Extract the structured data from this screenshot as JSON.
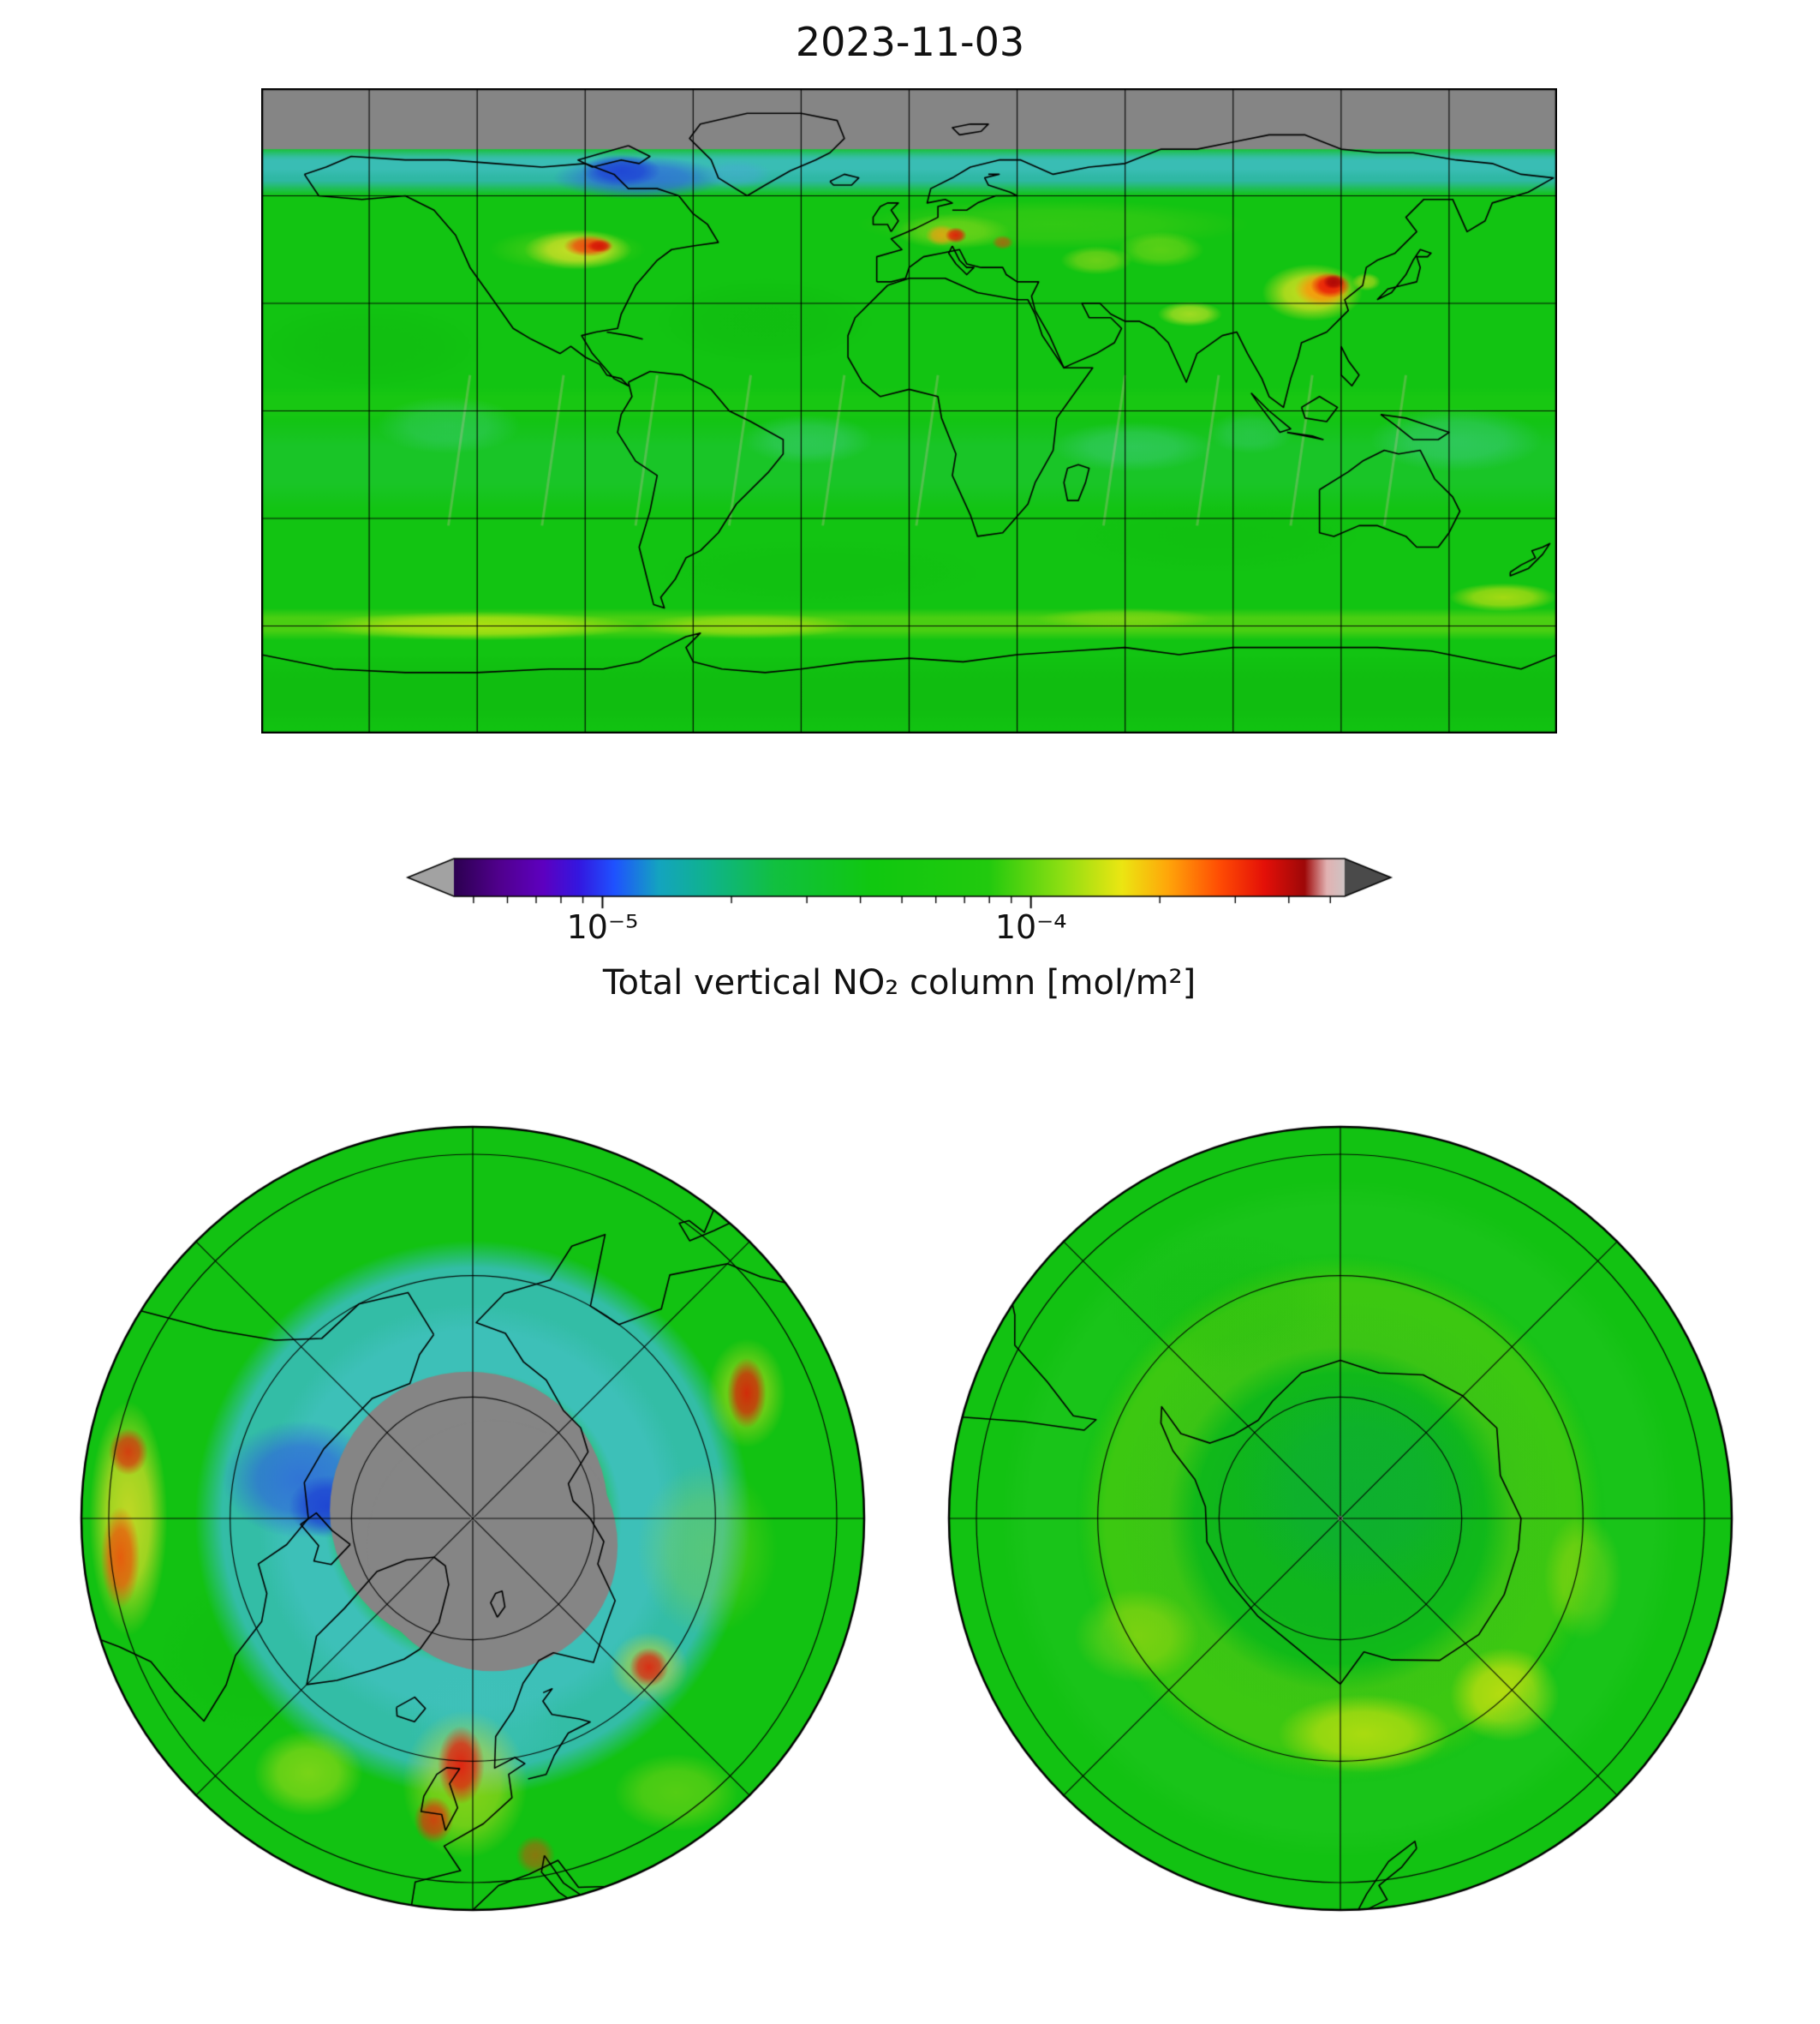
{
  "title": "2023-11-03",
  "figure": {
    "background": "#ffffff",
    "panels": [
      "global-map",
      "colorbar",
      "north-polar-map",
      "south-polar-map"
    ]
  },
  "colorbar": {
    "label": "Total vertical NO₂ column [mol/m²]",
    "scale": "log",
    "vmin": 4.5e-06,
    "vmax": 0.00054,
    "major_ticks": [
      {
        "value": 1e-05,
        "label": "10⁻⁵"
      },
      {
        "value": 0.0001,
        "label": "10⁻⁴"
      }
    ],
    "minor_ticks": [
      5e-06,
      6e-06,
      7e-06,
      8e-06,
      9e-06,
      2e-05,
      3e-05,
      4e-05,
      5e-05,
      6e-05,
      7e-05,
      8e-05,
      9e-05,
      0.0002,
      0.0003,
      0.0004,
      0.0005
    ],
    "under_arrow_color": "#a2a2a2",
    "over_arrow_color": "#4a4a4a",
    "gradient_stops": [
      [
        0,
        "#2c0050"
      ],
      [
        0.05,
        "#50008c"
      ],
      [
        0.1,
        "#5e00c0"
      ],
      [
        0.14,
        "#3417e0"
      ],
      [
        0.18,
        "#1f52ff"
      ],
      [
        0.23,
        "#14a4c0"
      ],
      [
        0.29,
        "#0fb488"
      ],
      [
        0.36,
        "#11c040"
      ],
      [
        0.47,
        "#10c810"
      ],
      [
        0.6,
        "#22ca0e"
      ],
      [
        0.68,
        "#8ade12"
      ],
      [
        0.75,
        "#ece612"
      ],
      [
        0.8,
        "#ffa80a"
      ],
      [
        0.86,
        "#ff4c04"
      ],
      [
        0.91,
        "#e41008"
      ],
      [
        0.955,
        "#9e0808"
      ],
      [
        0.98,
        "#e2b2b2"
      ],
      [
        1,
        "#cfc4c4"
      ]
    ]
  },
  "chart_data": [
    {
      "type": "heatmap",
      "name": "global_no2_map",
      "title": "2023-11-03",
      "projection": "plate-carree",
      "lon_range": [
        -180,
        180
      ],
      "lat_range": [
        -90,
        90
      ],
      "gridline_spacing_deg": 30,
      "colormap_range_mol_m2": [
        4.5e-06,
        0.00054
      ],
      "background_level_mol_m2": 5e-05,
      "no_data": {
        "region": "Arctic polar night band, lat > ~73N",
        "color": "#858585"
      },
      "overlays": [
        "coastlines",
        "gridlines"
      ],
      "hotspots": [
        {
          "region": "Central/Eastern United States",
          "lon": -89,
          "lat": 46,
          "peak_mol_m2": 0.0003
        },
        {
          "region": "Central Europe",
          "lon": 13,
          "lat": 49,
          "peak_mol_m2": 0.0003
        },
        {
          "region": "Eastern China",
          "lon": 117,
          "lat": 35,
          "peak_mol_m2": 0.0005
        },
        {
          "region": "Northern India",
          "lon": 78,
          "lat": 27,
          "peak_mol_m2": 0.00015
        },
        {
          "region": "Southern Ocean circumpolar band",
          "lon": 0,
          "lat": -60,
          "peak_mol_m2": 0.00012
        }
      ],
      "low_regions": [
        {
          "region": "Canadian Arctic / Greenland (polar twilight)",
          "lon": -78,
          "lat": 66,
          "min_mol_m2": 8e-06
        }
      ],
      "features": [
        {
          "op": "fill",
          "color": "#12c412"
        },
        {
          "op": "blob",
          "lon": -40,
          "lat": 25,
          "rlon": 30,
          "rlat": 12,
          "color": "#0a9e0a",
          "alpha": 0.15
        },
        {
          "op": "blob",
          "lon": -150,
          "lat": 18,
          "rlon": 32,
          "rlat": 12,
          "color": "#0a9e0a",
          "alpha": 0.13
        },
        {
          "op": "blob",
          "lon": 85,
          "lat": -35,
          "rlon": 40,
          "rlat": 10,
          "color": "#0fae0f",
          "alpha": 0.16
        },
        {
          "op": "blob",
          "lon": -25,
          "lat": -45,
          "rlon": 45,
          "rlat": 9,
          "color": "#0fae0f",
          "alpha": 0.14
        },
        {
          "op": "band",
          "lat0": -3,
          "lat1": 7,
          "soft": true,
          "color": "#2fd312",
          "alpha": 0.22
        },
        {
          "op": "band",
          "lat0": -28,
          "lat1": -2,
          "soft": true,
          "color": "#4ecfc0",
          "alpha": 0.12
        },
        {
          "op": "blob",
          "lon": -28,
          "lat": -8,
          "rlon": 18,
          "rlat": 7,
          "color": "#62d2cc",
          "alpha": 0.28
        },
        {
          "op": "blob",
          "lon": 62,
          "lat": -10,
          "rlon": 22,
          "rlat": 7,
          "color": "#62d2cc",
          "alpha": 0.28
        },
        {
          "op": "blob",
          "lon": 152,
          "lat": -8,
          "rlon": 24,
          "rlat": 9,
          "color": "#5cd0cc",
          "alpha": 0.32
        },
        {
          "op": "blob",
          "lon": -128,
          "lat": -4,
          "rlon": 20,
          "rlat": 8,
          "color": "#62d2cc",
          "alpha": 0.26
        },
        {
          "op": "blob",
          "lon": 95,
          "lat": -6,
          "rlon": 12,
          "rlat": 6,
          "color": "#62d2cc",
          "alpha": 0.22
        },
        {
          "op": "seams",
          "color": "#ffb8c8",
          "alpha": 0.25,
          "lons": [
            -122,
            -96,
            -70,
            -44,
            -18,
            8,
            60,
            86,
            112,
            138
          ]
        },
        {
          "op": "blob",
          "lon": 40,
          "lat": 52,
          "rlon": 55,
          "rlat": 7,
          "color": "#8fd81a",
          "alpha": 0.25
        },
        {
          "op": "blob",
          "lon": -95,
          "lat": 45,
          "rlon": 22,
          "rlat": 6,
          "color": "#9ade1c",
          "alpha": 0.3
        },
        {
          "op": "band",
          "lat0": 60,
          "lat1": 74,
          "soft": true,
          "color": "#2fb8a4",
          "alpha": 1
        },
        {
          "op": "band",
          "lat0": 65,
          "lat1": 73,
          "soft": true,
          "color": "#46c4c8",
          "alpha": 0.45
        },
        {
          "op": "blob",
          "lon": -75,
          "lat": 65,
          "rlon": 24,
          "rlat": 6,
          "color": "#2f66dd",
          "alpha": 0.8
        },
        {
          "op": "blob",
          "lon": -80,
          "lat": 67,
          "rlon": 11,
          "rlat": 4.5,
          "color": "#1d3ed6",
          "alpha": 0.85
        },
        {
          "op": "blob",
          "lon": -48,
          "lat": 66,
          "rlon": 10,
          "rlat": 4,
          "color": "#48a8d8",
          "alpha": 0.5
        },
        {
          "op": "band",
          "lat0": 73,
          "lat1": 90,
          "color": "#858585",
          "alpha": 1
        },
        {
          "op": "blob",
          "lon": -92,
          "lat": 45,
          "rlon": 15,
          "rlat": 5.5,
          "color": "#eee42a",
          "alpha": 0.8
        },
        {
          "op": "blob",
          "lon": -89,
          "lat": 46,
          "rlon": 7,
          "rlat": 3,
          "color": "#f23c0c",
          "alpha": 0.9
        },
        {
          "op": "blob",
          "lon": -86,
          "lat": 46,
          "rlon": 3.5,
          "rlat": 1.8,
          "color": "#d40f06",
          "alpha": 0.9
        },
        {
          "op": "blob",
          "lon": 12,
          "lat": 50,
          "rlon": 16,
          "rlat": 5,
          "color": "#b4e020",
          "alpha": 0.45
        },
        {
          "op": "blob",
          "lon": 9,
          "lat": 49,
          "rlon": 4.5,
          "rlat": 3,
          "color": "#ff9c10",
          "alpha": 0.75
        },
        {
          "op": "blob",
          "lon": 13,
          "lat": 49,
          "rlon": 3,
          "rlat": 2.2,
          "color": "#e81508",
          "alpha": 0.9
        },
        {
          "op": "blob",
          "lon": 26,
          "lat": 47,
          "rlon": 3,
          "rlat": 2,
          "color": "#e83c0c",
          "alpha": 0.6
        },
        {
          "op": "blob",
          "lon": 52,
          "lat": 42,
          "rlon": 10,
          "rlat": 4,
          "color": "#d8e020",
          "alpha": 0.45
        },
        {
          "op": "blob",
          "lon": 70,
          "lat": 45,
          "rlon": 12,
          "rlat": 5,
          "color": "#c6e41e",
          "alpha": 0.4
        },
        {
          "op": "blob",
          "lon": 78,
          "lat": 27,
          "rlon": 9,
          "rlat": 3.5,
          "color": "#cfe428",
          "alpha": 0.75
        },
        {
          "op": "blob",
          "lon": 112,
          "lat": 33,
          "rlon": 14,
          "rlat": 8,
          "color": "#eee422",
          "alpha": 0.85
        },
        {
          "op": "blob",
          "lon": 115,
          "lat": 34,
          "rlon": 8,
          "rlat": 5,
          "color": "#ff8c08",
          "alpha": 0.9
        },
        {
          "op": "blob",
          "lon": 117,
          "lat": 35,
          "rlon": 5.5,
          "rlat": 3.5,
          "color": "#e81208",
          "alpha": 0.95
        },
        {
          "op": "blob",
          "lon": 118,
          "lat": 36,
          "rlon": 3,
          "rlat": 2,
          "color": "#a80606",
          "alpha": 0.9
        },
        {
          "op": "blob",
          "lon": 127,
          "lat": 36,
          "rlon": 4,
          "rlat": 2.5,
          "color": "#e8dc20",
          "alpha": 0.6
        },
        {
          "op": "band",
          "lat0": -90,
          "lat1": -68,
          "soft": true,
          "color": "#0fb80f",
          "alpha": 0.55
        },
        {
          "op": "band",
          "lat0": -64,
          "lat1": -55,
          "soft": true,
          "color": "#8ede12",
          "alpha": 0.45
        },
        {
          "op": "blob",
          "lon": -120,
          "lat": -60,
          "rlon": 45,
          "rlat": 4,
          "color": "#d6e812",
          "alpha": 0.7
        },
        {
          "op": "blob",
          "lon": -45,
          "lat": -60,
          "rlon": 30,
          "rlat": 3.5,
          "color": "#c8e414",
          "alpha": 0.6
        },
        {
          "op": "blob",
          "lon": 165,
          "lat": -52,
          "rlon": 15,
          "rlat": 4,
          "color": "#e0e414",
          "alpha": 0.7
        },
        {
          "op": "blob",
          "lon": 60,
          "lat": -58,
          "rlon": 25,
          "rlat": 3,
          "color": "#a8dc14",
          "alpha": 0.5
        }
      ]
    },
    {
      "type": "heatmap",
      "name": "north_polar_no2_map",
      "projection": "north-polar-azimuthal",
      "hemisphere": "north",
      "edge_lat": 40,
      "grid": {
        "circle_radii_frac": [
          0.31,
          0.62,
          0.93
        ],
        "spoke_step_deg": 45
      },
      "no_data": {
        "region": "polar night cap, lat > ~72N",
        "color": "#858585"
      },
      "overlays": [
        "coastlines",
        "gridlines",
        "pole-marker"
      ],
      "features": [
        {
          "op": "fill",
          "color": "#12c212"
        },
        {
          "op": "pblob",
          "x": 0.1,
          "y": -0.5,
          "rx": 0.3,
          "ry": 0.2,
          "color": "#0aa80a",
          "alpha": 0.15
        },
        {
          "op": "pblob",
          "x": -0.55,
          "y": 0.35,
          "rx": 0.25,
          "ry": 0.2,
          "color": "#0fb40f",
          "alpha": 0.2
        },
        {
          "op": "ring",
          "r0": 0.36,
          "r1": 0.66,
          "color": "#35bdae",
          "alpha": 0.95
        },
        {
          "op": "ring",
          "r0": 0.36,
          "r1": 0.5,
          "color": "#4ac4cf",
          "alpha": 0.45
        },
        {
          "op": "pblob",
          "x": 0.03,
          "y": 0.52,
          "rx": 0.2,
          "ry": 0.13,
          "color": "#40c2ba",
          "alpha": 0.5
        },
        {
          "op": "pblob",
          "x": -0.44,
          "y": -0.1,
          "rx": 0.2,
          "ry": 0.15,
          "color": "#2e62dd",
          "alpha": 0.8
        },
        {
          "op": "pblob",
          "x": -0.37,
          "y": -0.03,
          "rx": 0.1,
          "ry": 0.08,
          "color": "#1c3cd4",
          "alpha": 0.85
        },
        {
          "op": "pcircle",
          "x": -0.01,
          "y": -0.02,
          "r": 0.355,
          "color": "#858585",
          "alpha": 1
        },
        {
          "op": "pcircle",
          "x": 0.05,
          "y": 0.07,
          "r": 0.32,
          "color": "#858585",
          "alpha": 1
        },
        {
          "op": "pblob",
          "x": -0.88,
          "y": 0.0,
          "rx": 0.1,
          "ry": 0.3,
          "color": "#eede2a",
          "alpha": 0.8
        },
        {
          "op": "pblob",
          "x": -0.9,
          "y": 0.1,
          "rx": 0.05,
          "ry": 0.13,
          "color": "#f04a0a",
          "alpha": 0.85
        },
        {
          "op": "pblob",
          "x": -0.88,
          "y": -0.17,
          "rx": 0.05,
          "ry": 0.06,
          "color": "#e01c0c",
          "alpha": 0.8
        },
        {
          "op": "pblob",
          "x": -0.42,
          "y": 0.65,
          "rx": 0.14,
          "ry": 0.11,
          "color": "#cde41c",
          "alpha": 0.55
        },
        {
          "op": "pblob",
          "x": -0.02,
          "y": 0.68,
          "rx": 0.16,
          "ry": 0.19,
          "color": "#e6e020",
          "alpha": 0.55
        },
        {
          "op": "pblob",
          "x": -0.03,
          "y": 0.63,
          "rx": 0.06,
          "ry": 0.1,
          "color": "#e81408",
          "alpha": 0.9
        },
        {
          "op": "pblob",
          "x": -0.1,
          "y": 0.77,
          "rx": 0.05,
          "ry": 0.06,
          "color": "#e8260c",
          "alpha": 0.8
        },
        {
          "op": "pblob",
          "x": 0.16,
          "y": 0.86,
          "rx": 0.05,
          "ry": 0.05,
          "color": "#e83c0c",
          "alpha": 0.55
        },
        {
          "op": "pblob",
          "x": 0.52,
          "y": 0.7,
          "rx": 0.16,
          "ry": 0.1,
          "color": "#b8e018",
          "alpha": 0.4
        },
        {
          "op": "pblob",
          "x": 0.45,
          "y": 0.38,
          "rx": 0.1,
          "ry": 0.09,
          "color": "#e8dc20",
          "alpha": 0.5
        },
        {
          "op": "pblob",
          "x": 0.45,
          "y": 0.38,
          "rx": 0.05,
          "ry": 0.05,
          "color": "#e61408",
          "alpha": 0.85
        },
        {
          "op": "pblob",
          "x": 0.7,
          "y": -0.32,
          "rx": 0.1,
          "ry": 0.14,
          "color": "#e6e01e",
          "alpha": 0.5
        },
        {
          "op": "pblob",
          "x": 0.7,
          "y": -0.32,
          "rx": 0.05,
          "ry": 0.09,
          "color": "#e01008",
          "alpha": 0.85
        },
        {
          "op": "pblob",
          "x": 0.6,
          "y": 0.08,
          "rx": 0.18,
          "ry": 0.22,
          "color": "#a8de1a",
          "alpha": 0.3
        },
        {
          "op": "pcircle",
          "x": 0,
          "y": 0,
          "r": 0.006,
          "color": "#ffffff",
          "alpha": 1
        }
      ]
    },
    {
      "type": "heatmap",
      "name": "south_polar_no2_map",
      "projection": "south-polar-azimuthal",
      "hemisphere": "south",
      "edge_lat": -38,
      "grid": {
        "circle_radii_frac": [
          0.31,
          0.62,
          0.93
        ],
        "spoke_step_deg": 45
      },
      "overlays": [
        "coastlines",
        "gridlines",
        "pole-marker"
      ],
      "features": [
        {
          "op": "fill",
          "color": "#12c212"
        },
        {
          "op": "pblob",
          "x": 0,
          "y": -0.02,
          "rx": 0.58,
          "ry": 0.55,
          "color": "#0ca32e",
          "alpha": 0.45
        },
        {
          "op": "pblob",
          "x": 0.05,
          "y": -0.08,
          "rx": 0.32,
          "ry": 0.28,
          "color": "#0a9e6e",
          "alpha": 0.22
        },
        {
          "op": "ring",
          "r0": 0.42,
          "r1": 0.62,
          "color": "#9ed810",
          "alpha": 0.3
        },
        {
          "op": "pblob",
          "x": -0.52,
          "y": 0.3,
          "rx": 0.16,
          "ry": 0.12,
          "color": "#b8dc12",
          "alpha": 0.5
        },
        {
          "op": "pblob",
          "x": 0.06,
          "y": 0.55,
          "rx": 0.22,
          "ry": 0.1,
          "color": "#d8e410",
          "alpha": 0.7
        },
        {
          "op": "pblob",
          "x": 0.42,
          "y": 0.45,
          "rx": 0.14,
          "ry": 0.12,
          "color": "#e0e410",
          "alpha": 0.75
        },
        {
          "op": "pblob",
          "x": 0.62,
          "y": 0.15,
          "rx": 0.1,
          "ry": 0.16,
          "color": "#b8dc12",
          "alpha": 0.45
        },
        {
          "op": "ring",
          "r0": 0.66,
          "r1": 0.82,
          "color": "#2fca2f",
          "alpha": 0.25
        },
        {
          "op": "pblob",
          "x": -0.3,
          "y": -0.55,
          "rx": 0.3,
          "ry": 0.18,
          "color": "#0fb40f",
          "alpha": 0.18
        },
        {
          "op": "pcircle",
          "x": 0,
          "y": 0,
          "r": 0.006,
          "color": "#ffffff",
          "alpha": 1
        }
      ]
    }
  ]
}
